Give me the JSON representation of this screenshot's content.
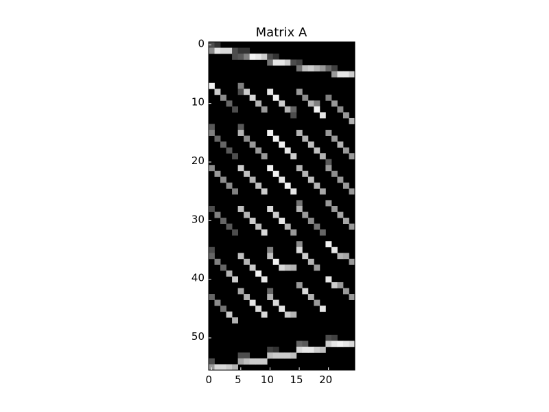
{
  "chart_data": {
    "type": "heatmap",
    "title": "Matrix A",
    "xlabel": "",
    "ylabel": "",
    "colormap": "gray",
    "colors": {
      "low": "#000000",
      "high": "#ffffff",
      "frame": "#000000",
      "text": "#000000",
      "background": "#ffffff"
    },
    "rows": 56,
    "cols": 25,
    "x_ticks": [
      0,
      5,
      10,
      15,
      20
    ],
    "y_ticks": [
      0,
      10,
      20,
      30,
      40,
      50
    ],
    "x_tick_labels": [
      "0",
      "5",
      "10",
      "15",
      "20"
    ],
    "y_tick_labels": [
      "0",
      "10",
      "20",
      "30",
      "40",
      "50"
    ],
    "value_range": [
      0,
      1
    ],
    "cells": [
      [
        0,
        0,
        0.3
      ],
      [
        0,
        1,
        0.2
      ],
      [
        1,
        0,
        0.55
      ],
      [
        1,
        1,
        0.9
      ],
      [
        1,
        2,
        0.85
      ],
      [
        1,
        3,
        0.85
      ],
      [
        1,
        4,
        0.3
      ],
      [
        1,
        5,
        0.2
      ],
      [
        1,
        6,
        0.2
      ],
      [
        2,
        4,
        0.3
      ],
      [
        2,
        5,
        0.35
      ],
      [
        2,
        6,
        0.5
      ],
      [
        2,
        7,
        0.95
      ],
      [
        2,
        8,
        0.9
      ],
      [
        2,
        9,
        0.8
      ],
      [
        2,
        10,
        0.3
      ],
      [
        2,
        11,
        0.2
      ],
      [
        3,
        10,
        0.45
      ],
      [
        3,
        11,
        0.9
      ],
      [
        3,
        12,
        0.9
      ],
      [
        3,
        13,
        0.8
      ],
      [
        3,
        14,
        0.3
      ],
      [
        3,
        15,
        0.25
      ],
      [
        4,
        15,
        0.45
      ],
      [
        4,
        16,
        0.75
      ],
      [
        4,
        17,
        0.8
      ],
      [
        4,
        18,
        0.7
      ],
      [
        4,
        19,
        0.6
      ],
      [
        4,
        20,
        0.4
      ],
      [
        4,
        21,
        0.25
      ],
      [
        5,
        21,
        0.6
      ],
      [
        5,
        22,
        0.9
      ],
      [
        5,
        23,
        0.9
      ],
      [
        5,
        24,
        0.8
      ],
      [
        7,
        0,
        0.95
      ],
      [
        8,
        1,
        0.8
      ],
      [
        9,
        2,
        0.55
      ],
      [
        10,
        3,
        0.4
      ],
      [
        11,
        4,
        0.3
      ],
      [
        7,
        5,
        0.5
      ],
      [
        8,
        5,
        0.3
      ],
      [
        8,
        6,
        0.8
      ],
      [
        9,
        7,
        0.85
      ],
      [
        10,
        8,
        0.7
      ],
      [
        11,
        9,
        0.6
      ],
      [
        8,
        10,
        0.9
      ],
      [
        9,
        11,
        0.95
      ],
      [
        10,
        12,
        0.8
      ],
      [
        11,
        13,
        0.7
      ],
      [
        11,
        14,
        0.4
      ],
      [
        12,
        14,
        0.3
      ],
      [
        8,
        15,
        0.6
      ],
      [
        9,
        16,
        0.55
      ],
      [
        10,
        17,
        0.7
      ],
      [
        10,
        18,
        0.5
      ],
      [
        11,
        18,
        0.95
      ],
      [
        12,
        19,
        0.9
      ],
      [
        9,
        20,
        0.5
      ],
      [
        10,
        21,
        0.6
      ],
      [
        11,
        22,
        0.55
      ],
      [
        12,
        23,
        0.6
      ],
      [
        13,
        24,
        0.7
      ],
      [
        14,
        0,
        0.35
      ],
      [
        15,
        0,
        0.5
      ],
      [
        16,
        1,
        0.4
      ],
      [
        17,
        2,
        0.4
      ],
      [
        18,
        3,
        0.35
      ],
      [
        19,
        4,
        0.3
      ],
      [
        14,
        5,
        0.35
      ],
      [
        15,
        5,
        0.7
      ],
      [
        16,
        6,
        0.55
      ],
      [
        17,
        7,
        0.6
      ],
      [
        18,
        8,
        0.6
      ],
      [
        19,
        9,
        0.6
      ],
      [
        15,
        10,
        0.95
      ],
      [
        16,
        11,
        0.95
      ],
      [
        17,
        12,
        0.95
      ],
      [
        18,
        13,
        0.9
      ],
      [
        19,
        14,
        0.8
      ],
      [
        15,
        15,
        0.7
      ],
      [
        16,
        16,
        0.7
      ],
      [
        17,
        17,
        0.75
      ],
      [
        18,
        18,
        0.75
      ],
      [
        19,
        19,
        0.7
      ],
      [
        15,
        20,
        0.6
      ],
      [
        16,
        21,
        0.6
      ],
      [
        17,
        22,
        0.7
      ],
      [
        18,
        23,
        0.6
      ],
      [
        19,
        24,
        0.6
      ],
      [
        21,
        0,
        0.55
      ],
      [
        22,
        1,
        0.6
      ],
      [
        23,
        2,
        0.55
      ],
      [
        24,
        3,
        0.55
      ],
      [
        25,
        4,
        0.5
      ],
      [
        21,
        5,
        0.8
      ],
      [
        22,
        6,
        0.75
      ],
      [
        23,
        7,
        0.7
      ],
      [
        24,
        8,
        0.75
      ],
      [
        25,
        9,
        0.8
      ],
      [
        21,
        10,
        0.95
      ],
      [
        22,
        11,
        0.95
      ],
      [
        23,
        12,
        0.9
      ],
      [
        24,
        13,
        0.95
      ],
      [
        25,
        14,
        0.9
      ],
      [
        21,
        15,
        0.7
      ],
      [
        22,
        16,
        0.7
      ],
      [
        23,
        17,
        0.75
      ],
      [
        24,
        18,
        0.7
      ],
      [
        25,
        19,
        0.65
      ],
      [
        20,
        20,
        0.35
      ],
      [
        21,
        20,
        0.6
      ],
      [
        22,
        21,
        0.55
      ],
      [
        23,
        22,
        0.6
      ],
      [
        24,
        23,
        0.6
      ],
      [
        25,
        24,
        0.6
      ],
      [
        28,
        0,
        0.3
      ],
      [
        29,
        1,
        0.5
      ],
      [
        30,
        2,
        0.4
      ],
      [
        31,
        3,
        0.35
      ],
      [
        32,
        4,
        0.3
      ],
      [
        28,
        5,
        0.75
      ],
      [
        29,
        6,
        0.7
      ],
      [
        30,
        7,
        0.8
      ],
      [
        31,
        8,
        0.75
      ],
      [
        32,
        9,
        0.85
      ],
      [
        28,
        10,
        0.85
      ],
      [
        29,
        11,
        0.8
      ],
      [
        30,
        12,
        0.9
      ],
      [
        31,
        13,
        0.7
      ],
      [
        32,
        14,
        0.6
      ],
      [
        27,
        15,
        0.45
      ],
      [
        28,
        15,
        0.7
      ],
      [
        29,
        16,
        0.6
      ],
      [
        30,
        17,
        0.55
      ],
      [
        31,
        18,
        0.45
      ],
      [
        32,
        19,
        0.4
      ],
      [
        27,
        20,
        0.6
      ],
      [
        28,
        21,
        0.6
      ],
      [
        29,
        22,
        0.65
      ],
      [
        30,
        23,
        0.65
      ],
      [
        31,
        24,
        0.6
      ],
      [
        35,
        0,
        0.3
      ],
      [
        36,
        0,
        0.4
      ],
      [
        37,
        1,
        0.5
      ],
      [
        38,
        2,
        0.4
      ],
      [
        39,
        3,
        0.7
      ],
      [
        40,
        4,
        0.8
      ],
      [
        36,
        5,
        0.75
      ],
      [
        37,
        6,
        0.7
      ],
      [
        38,
        7,
        0.8
      ],
      [
        39,
        8,
        0.95
      ],
      [
        40,
        9,
        0.9
      ],
      [
        35,
        10,
        0.5
      ],
      [
        36,
        10,
        0.75
      ],
      [
        37,
        11,
        0.95
      ],
      [
        38,
        12,
        0.85
      ],
      [
        38,
        13,
        0.75
      ],
      [
        38,
        14,
        0.7
      ],
      [
        34,
        15,
        0.55
      ],
      [
        35,
        15,
        0.85
      ],
      [
        36,
        16,
        0.8
      ],
      [
        37,
        17,
        0.7
      ],
      [
        38,
        18,
        0.6
      ],
      [
        34,
        20,
        0.95
      ],
      [
        35,
        21,
        0.9
      ],
      [
        36,
        22,
        0.7
      ],
      [
        36,
        23,
        0.65
      ],
      [
        37,
        24,
        0.6
      ],
      [
        43,
        0,
        0.4
      ],
      [
        44,
        1,
        0.55
      ],
      [
        45,
        2,
        0.45
      ],
      [
        46,
        3,
        0.8
      ],
      [
        47,
        4,
        0.7
      ],
      [
        42,
        5,
        0.65
      ],
      [
        43,
        6,
        0.7
      ],
      [
        44,
        7,
        0.9
      ],
      [
        45,
        8,
        0.85
      ],
      [
        46,
        9,
        0.85
      ],
      [
        42,
        10,
        0.4
      ],
      [
        43,
        10,
        0.7
      ],
      [
        44,
        11,
        0.85
      ],
      [
        45,
        12,
        0.9
      ],
      [
        46,
        13,
        0.8
      ],
      [
        46,
        14,
        0.7
      ],
      [
        41,
        15,
        0.6
      ],
      [
        42,
        16,
        0.85
      ],
      [
        43,
        17,
        0.7
      ],
      [
        44,
        18,
        0.6
      ],
      [
        45,
        19,
        0.9
      ],
      [
        40,
        20,
        0.9
      ],
      [
        41,
        21,
        0.8
      ],
      [
        41,
        22,
        0.6
      ],
      [
        42,
        23,
        0.6
      ],
      [
        43,
        24,
        0.6
      ],
      [
        50,
        20,
        0.3
      ],
      [
        50,
        21,
        0.25
      ],
      [
        51,
        20,
        0.8
      ],
      [
        51,
        21,
        0.9
      ],
      [
        51,
        22,
        0.95
      ],
      [
        51,
        23,
        0.9
      ],
      [
        51,
        24,
        0.85
      ],
      [
        51,
        15,
        0.4
      ],
      [
        51,
        16,
        0.35
      ],
      [
        52,
        15,
        0.85
      ],
      [
        52,
        16,
        0.9
      ],
      [
        52,
        17,
        0.9
      ],
      [
        52,
        18,
        0.8
      ],
      [
        52,
        19,
        0.75
      ],
      [
        52,
        10,
        0.25
      ],
      [
        52,
        11,
        0.2
      ],
      [
        53,
        10,
        0.75
      ],
      [
        53,
        11,
        0.8
      ],
      [
        53,
        12,
        0.8
      ],
      [
        53,
        13,
        0.8
      ],
      [
        53,
        14,
        0.75
      ],
      [
        53,
        5,
        0.3
      ],
      [
        53,
        6,
        0.3
      ],
      [
        54,
        5,
        0.65
      ],
      [
        54,
        6,
        0.75
      ],
      [
        54,
        7,
        0.8
      ],
      [
        54,
        8,
        0.8
      ],
      [
        54,
        9,
        0.8
      ],
      [
        54,
        0,
        0.3
      ],
      [
        55,
        0,
        0.6
      ],
      [
        55,
        1,
        0.85
      ],
      [
        55,
        2,
        0.85
      ],
      [
        55,
        3,
        0.8
      ],
      [
        55,
        4,
        0.7
      ]
    ]
  }
}
